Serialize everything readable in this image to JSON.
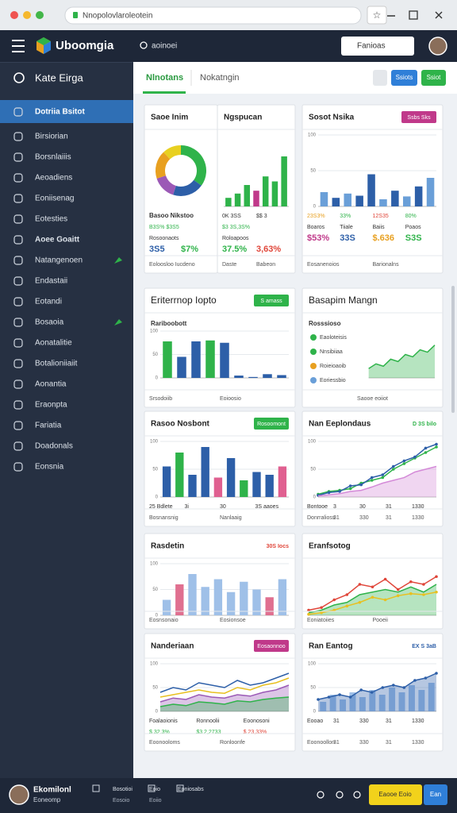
{
  "browser": {
    "url": "Nnopolovlaroleotein"
  },
  "header": {
    "brand": "Uboomgia",
    "search": "aoinoei",
    "button": "Fanioas"
  },
  "sidebar": {
    "title": "Kate Eirga",
    "items": [
      "Dotriia Bsitot",
      "Birsiorian",
      "Borsnlaiiis",
      "Aeoadiens",
      "Eoniisenag",
      "Eotesties",
      "Aoee Goaitt",
      "Natangenoen",
      "Endastaii",
      "Eotandi",
      "Bosaoia",
      "Aonatalitie",
      "Botalioniiaiit",
      "Aonantia",
      "Eraonpta",
      "Fariatia",
      "Doadonals",
      "Eonsnia"
    ]
  },
  "tabs": {
    "items": [
      "Nlnotans",
      "Nokatngin"
    ],
    "buttons": [
      "Ssiots",
      "Ssiot"
    ]
  },
  "cards": [
    {
      "title": "Saoe Inim",
      "chart": {
        "type": "donut",
        "values": [
          35,
          20,
          15,
          18,
          12
        ],
        "colors": [
          "#2fb34a",
          "#2d5fa8",
          "#9b59b6",
          "#e8a020",
          "#e8d020"
        ]
      },
      "stats": [
        {
          "cells": [
            "Basoo Nikstoo"
          ],
          "style": "label"
        },
        {
          "cells": [
            "B3S% $3S5"
          ],
          "colors": [
            "#2fb34a"
          ],
          "style": "small"
        },
        {
          "cells": [
            "Rosoonaots"
          ],
          "style": "small"
        },
        {
          "cells": [
            "3S5",
            "$7%"
          ],
          "colors": [
            "#2d5fa8",
            "#2fb34a"
          ],
          "style": "value"
        }
      ],
      "footer": [
        "Eoloosloo Iucdeno"
      ]
    },
    {
      "title": "Ngspucan",
      "chart": {
        "type": "bar",
        "ylim": [
          0,
          100
        ],
        "values": [
          12,
          18,
          30,
          22,
          42,
          35,
          70
        ],
        "colors": [
          "#2fb34a",
          "#2fb34a",
          "#2fb34a",
          "#c0398a",
          "#2fb34a",
          "#2fb34a",
          "#2fb34a"
        ]
      },
      "stats": [
        {
          "cells": [
            "0K 3SS",
            "$$ 3"
          ],
          "style": "small"
        },
        {
          "cells": [
            "$3 3S,3S%"
          ],
          "colors": [
            "#2fb34a"
          ],
          "style": "small"
        },
        {
          "cells": [
            "Roloapoos"
          ],
          "style": "small"
        },
        {
          "cells": [
            "37.5%",
            "3,63%"
          ],
          "colors": [
            "#2fb34a",
            "#e0463a"
          ],
          "style": "value"
        }
      ],
      "footer": [
        "Daste",
        "Babeon"
      ]
    },
    {
      "title": "Sosot Nsika",
      "badge": {
        "text": "Ssbs Sks",
        "color": "#c0398a"
      },
      "chart": {
        "type": "bar",
        "ylim": [
          0,
          100
        ],
        "yticks": [
          0,
          50,
          100
        ],
        "values": [
          20,
          12,
          18,
          15,
          45,
          10,
          22,
          14,
          28,
          40
        ],
        "colors": [
          "#6a9fd8",
          "#2d5fa8",
          "#6a9fd8",
          "#2d5fa8",
          "#2d5fa8",
          "#6a9fd8",
          "#2d5fa8",
          "#6a9fd8",
          "#2d5fa8",
          "#6a9fd8"
        ]
      },
      "stats": [
        {
          "cells": [
            "23S3%",
            "33%",
            "12S35",
            "80%"
          ],
          "colors": [
            "#e8a020",
            "#2fb34a",
            "#e0463a",
            "#2fb34a"
          ],
          "style": "small"
        },
        {
          "cells": [
            "Boaros",
            "Tiiale",
            "Baiis",
            "Poaos"
          ],
          "style": "small"
        },
        {
          "cells": [
            "$53%",
            "33S",
            "$.636",
            "S3S"
          ],
          "colors": [
            "#c0398a",
            "#2d5fa8",
            "#e8a020",
            "#2fb34a"
          ],
          "style": "value"
        }
      ],
      "footer": [
        "Eosanenoios",
        "Barionalns"
      ]
    },
    {
      "title": "Eriterrnop Iopto",
      "badge": {
        "text": "S amass",
        "color": "#2fb34a"
      },
      "subtitle": "Rariboobott",
      "chart": {
        "type": "bar",
        "ylim": [
          0,
          100
        ],
        "yticks": [
          0,
          50,
          100
        ],
        "values": [
          78,
          45,
          78,
          80,
          75,
          5,
          2,
          8,
          6
        ],
        "colors": [
          "#2fb34a",
          "#2d5fa8",
          "#2d5fa8",
          "#2fb34a",
          "#2d5fa8",
          "#2d5fa8",
          "#2d5fa8",
          "#2d5fa8",
          "#2d5fa8"
        ]
      },
      "footer": [
        "Srsodoiib",
        "Eoioosio"
      ]
    },
    {
      "title": "Basapim Mangn",
      "subtitle": "Rosssioso",
      "legend": [
        {
          "text": "Eaoloteisis",
          "color": "#2fb34a"
        },
        {
          "text": "Nnsibiiaa",
          "color": "#2fb34a"
        },
        {
          "text": "Roieioaoib",
          "color": "#e8a020"
        },
        {
          "text": "Eoriessbio",
          "color": "#6a9fd8"
        }
      ],
      "chart": {
        "type": "area",
        "ylim": [
          0,
          100
        ],
        "series": [
          {
            "values": [
              20,
              30,
              25,
              40,
              35,
              50,
              45,
              60,
              55,
              70
            ],
            "color": "#2fb34a",
            "fill": true
          }
        ]
      },
      "footer": [
        "Saooe eoiiot"
      ]
    },
    {
      "title": "Rasoo Nosbont",
      "badge": {
        "text": "Rosoomont",
        "color": "#2fb34a"
      },
      "chart": {
        "type": "bar",
        "ylim": [
          0,
          100
        ],
        "yticks": [
          0,
          50,
          100
        ],
        "values": [
          55,
          80,
          40,
          90,
          35,
          70,
          30,
          45,
          40,
          55
        ],
        "colors": [
          "#2d5fa8",
          "#2fb34a",
          "#2d5fa8",
          "#2d5fa8",
          "#e06090",
          "#2d5fa8",
          "#2fb34a",
          "#2d5fa8",
          "#2d5fa8",
          "#e06090"
        ]
      },
      "stats": [
        {
          "cells": [
            "25 Bdlete",
            "3i",
            "30",
            "3S aaoes"
          ],
          "style": "small"
        }
      ],
      "footer": [
        "Bosnansnig",
        "Nanlaaig"
      ]
    },
    {
      "title": "Nan Eeplondaus",
      "tag": {
        "text": "D 3S bilo",
        "color": "#2fb34a"
      },
      "chart": {
        "type": "line",
        "ylim": [
          0,
          100
        ],
        "yticks": [
          0,
          50,
          100
        ],
        "series": [
          {
            "values": [
              5,
              10,
              12,
              15,
              25,
              30,
              35,
              50,
              60,
              70,
              80,
              90
            ],
            "color": "#2fb34a",
            "dots": true
          },
          {
            "values": [
              3,
              8,
              10,
              20,
              22,
              35,
              40,
              55,
              65,
              72,
              88,
              95
            ],
            "color": "#2d5fa8",
            "dots": true
          },
          {
            "values": [
              2,
              4,
              6,
              10,
              12,
              18,
              25,
              30,
              35,
              45,
              50,
              55
            ],
            "color": "#d48ad8",
            "fill": true
          }
        ]
      },
      "stats": [
        {
          "cells": [
            "Bontooe",
            "3",
            "30",
            "31",
            "1330"
          ],
          "style": "small"
        }
      ],
      "footer": [
        "Donrralioss",
        "31",
        "330",
        "31",
        "1330"
      ]
    },
    {
      "title": "Rasdetin",
      "tag": {
        "text": "30S Iocs",
        "color": "#e0463a"
      },
      "chart": {
        "type": "bar",
        "ylim": [
          0,
          100
        ],
        "yticks": [
          0,
          50,
          100
        ],
        "values": [
          30,
          60,
          80,
          55,
          70,
          45,
          65,
          50,
          35,
          70
        ],
        "colors": [
          "#9fc0e8",
          "#e07090",
          "#9fc0e8",
          "#9fc0e8",
          "#9fc0e8",
          "#9fc0e8",
          "#9fc0e8",
          "#9fc0e8",
          "#e07090",
          "#9fc0e8"
        ]
      },
      "footer": [
        "Eosnsonaio",
        "Eosionsoe"
      ]
    },
    {
      "title": "Eranfsotog",
      "chart": {
        "type": "line",
        "ylim": [
          0,
          100
        ],
        "series": [
          {
            "values": [
              10,
              15,
              30,
              40,
              60,
              55,
              70,
              50,
              65,
              60,
              75
            ],
            "color": "#e0463a",
            "dots": true
          },
          {
            "values": [
              5,
              10,
              20,
              25,
              40,
              45,
              50,
              45,
              55,
              45,
              60
            ],
            "color": "#2fb34a",
            "fill": true
          },
          {
            "values": [
              2,
              5,
              10,
              18,
              25,
              35,
              30,
              38,
              42,
              40,
              45
            ],
            "color": "#e8c020",
            "dots": true
          }
        ]
      },
      "footer": [
        "Eoniatoiies",
        "Pooeii"
      ]
    },
    {
      "title": "Nanderiaan",
      "badge": {
        "text": "Eosaonnoo",
        "color": "#c0398a"
      },
      "chart": {
        "type": "area",
        "ylim": [
          0,
          100
        ],
        "yticks": [
          0,
          50,
          100
        ],
        "series": [
          {
            "values": [
              40,
              50,
              45,
              60,
              55,
              50,
              65,
              55,
              60,
              70,
              80
            ],
            "color": "#2d5fa8"
          },
          {
            "values": [
              30,
              35,
              40,
              45,
              40,
              38,
              50,
              45,
              55,
              60,
              70
            ],
            "color": "#e8c020"
          },
          {
            "values": [
              20,
              28,
              25,
              35,
              30,
              28,
              35,
              32,
              40,
              45,
              55
            ],
            "color": "#9b59b6",
            "fill": true
          },
          {
            "values": [
              10,
              15,
              12,
              20,
              18,
              15,
              22,
              20,
              25,
              28,
              30
            ],
            "color": "#2fb34a",
            "fill": true
          }
        ]
      },
      "stats": [
        {
          "cells": [
            "Foalaoionis",
            "Ronnoolii",
            "Eoonosoni"
          ],
          "style": "small"
        },
        {
          "cells": [
            "$ 32.3%",
            "$3 2,2733",
            "$ 23,33%"
          ],
          "colors": [
            "#2fb34a",
            "#2fb34a",
            "#e0463a"
          ],
          "style": "small"
        }
      ],
      "footer": [
        "Eoonooloms",
        "Ronloonfe"
      ]
    },
    {
      "title": "Ran Eantog",
      "tag": {
        "text": "EX S 3aB",
        "color": "#2d5fa8"
      },
      "chart": {
        "type": "combo",
        "ylim": [
          0,
          100
        ],
        "yticks": [
          0,
          50,
          100
        ],
        "values": [
          20,
          35,
          25,
          40,
          30,
          45,
          35,
          50,
          40,
          55,
          45,
          60
        ],
        "color": "#9fc0e8",
        "series": [
          {
            "values": [
              25,
              30,
              35,
              30,
              45,
              40,
              50,
              55,
              50,
              65,
              70,
              80
            ],
            "color": "#2d5fa8",
            "fill": true,
            "dots": true
          }
        ]
      },
      "stats": [
        {
          "cells": [
            "Eooao",
            "31",
            "330",
            "31",
            "1330"
          ],
          "style": "small"
        }
      ],
      "footer": [
        "Eoonoollon",
        "31",
        "330",
        "31",
        "1330"
      ]
    }
  ],
  "footer": {
    "name": "Ekomilonl",
    "role": "Eoneomp",
    "items": [
      "Bosotioi",
      "Eoio",
      "Eoniosabs"
    ],
    "subitems": [
      "Eosoio",
      "Eoiio"
    ],
    "primary": "Eaooe Eoio",
    "secondary": "Ean"
  }
}
